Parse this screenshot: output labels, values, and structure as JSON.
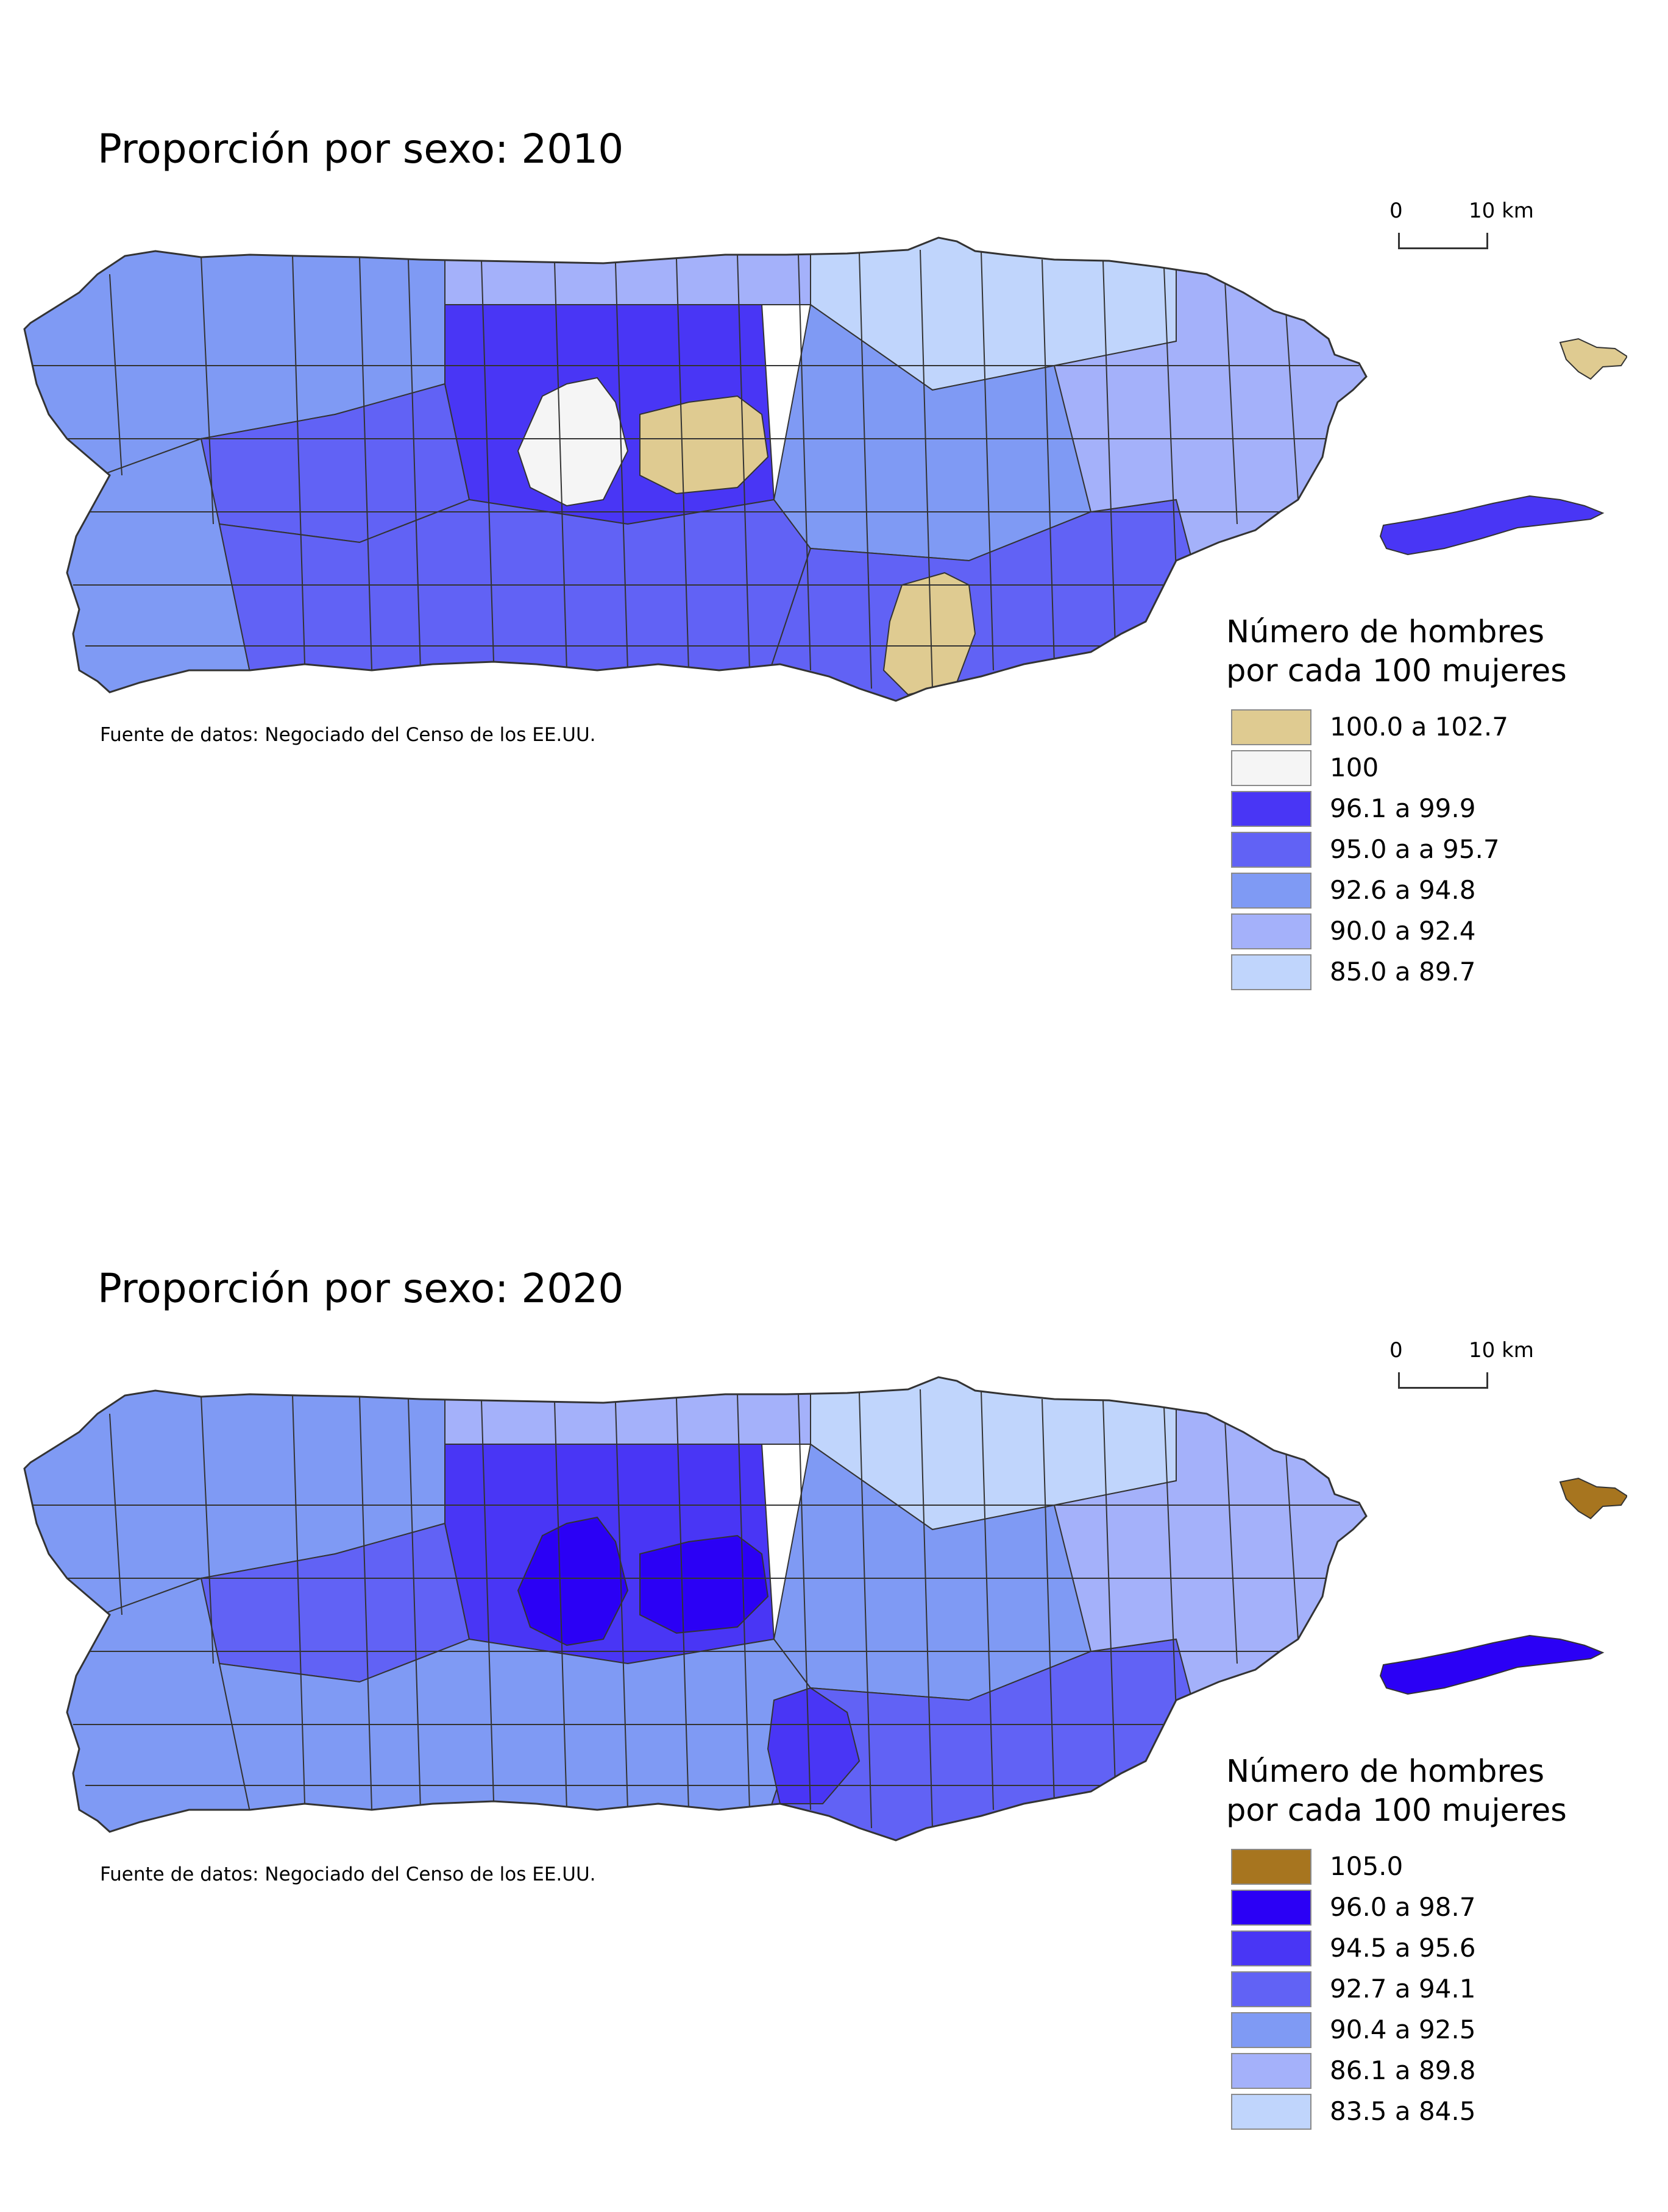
{
  "maps": [
    {
      "title": "Proporción por sexo: 2010",
      "source": "Fuente de datos: Negociado del Censo de los EE.UU.",
      "scale": {
        "start_label": "0",
        "end_label": "10 km"
      },
      "legend": {
        "title_line1": "Número de hombres",
        "title_line2": "por cada 100 mujeres",
        "items": [
          {
            "label": "100.0 a 102.7",
            "color": "#dfcb91"
          },
          {
            "label": "100",
            "color": "#f5f5f5"
          },
          {
            "label": "96.1 a 99.9",
            "color": "#4936f5"
          },
          {
            "label": "95.0 a a 95.7",
            "color": "#6162f5"
          },
          {
            "label": "92.6 a 94.8",
            "color": "#7f9af4"
          },
          {
            "label": "90.0 a 92.4",
            "color": "#a4b1fa"
          },
          {
            "label": "85.0 a 89.7",
            "color": "#c0d5fc"
          }
        ]
      },
      "colors": {
        "main_regions": [
          "#7f9af4",
          "#6162f5",
          "#4936f5",
          "#a4b1fa",
          "#7f9af4",
          "#6162f5",
          "#c0d5fc",
          "#7f9af4",
          "#6162f5",
          "#a4b1fa"
        ],
        "special_white": "#f5f5f5",
        "special_tan": "#dfcb91",
        "vieques": "#4936f5",
        "culebra": "#dfcb91"
      }
    },
    {
      "title": "Proporción por sexo: 2020",
      "source": "Fuente de datos: Negociado del Censo de los EE.UU.",
      "scale": {
        "start_label": "0",
        "end_label": "10 km"
      },
      "legend": {
        "title_line1": "Número de hombres",
        "title_line2": "por cada 100 mujeres",
        "items": [
          {
            "label": "105.0",
            "color": "#a7751f"
          },
          {
            "label": "96.0 a 98.7",
            "color": "#2b00f5"
          },
          {
            "label": "94.5 a 95.6",
            "color": "#4936f5"
          },
          {
            "label": "92.7 a 94.1",
            "color": "#6162f5"
          },
          {
            "label": "90.4 a 92.5",
            "color": "#7f9af4"
          },
          {
            "label": "86.1 a 89.8",
            "color": "#a4b1fa"
          },
          {
            "label": "83.5 a 84.5",
            "color": "#c0d5fc"
          }
        ]
      },
      "colors": {
        "main_regions": [
          "#7f9af4",
          "#6162f5",
          "#4936f5",
          "#a4b1fa",
          "#7f9af4",
          "#7f9af4",
          "#c0d5fc",
          "#7f9af4",
          "#6162f5",
          "#a4b1fa"
        ],
        "special_white": "#2b00f5",
        "special_tan": "#2b00f5",
        "vieques": "#2b00f5",
        "culebra": "#a7751f"
      }
    }
  ]
}
